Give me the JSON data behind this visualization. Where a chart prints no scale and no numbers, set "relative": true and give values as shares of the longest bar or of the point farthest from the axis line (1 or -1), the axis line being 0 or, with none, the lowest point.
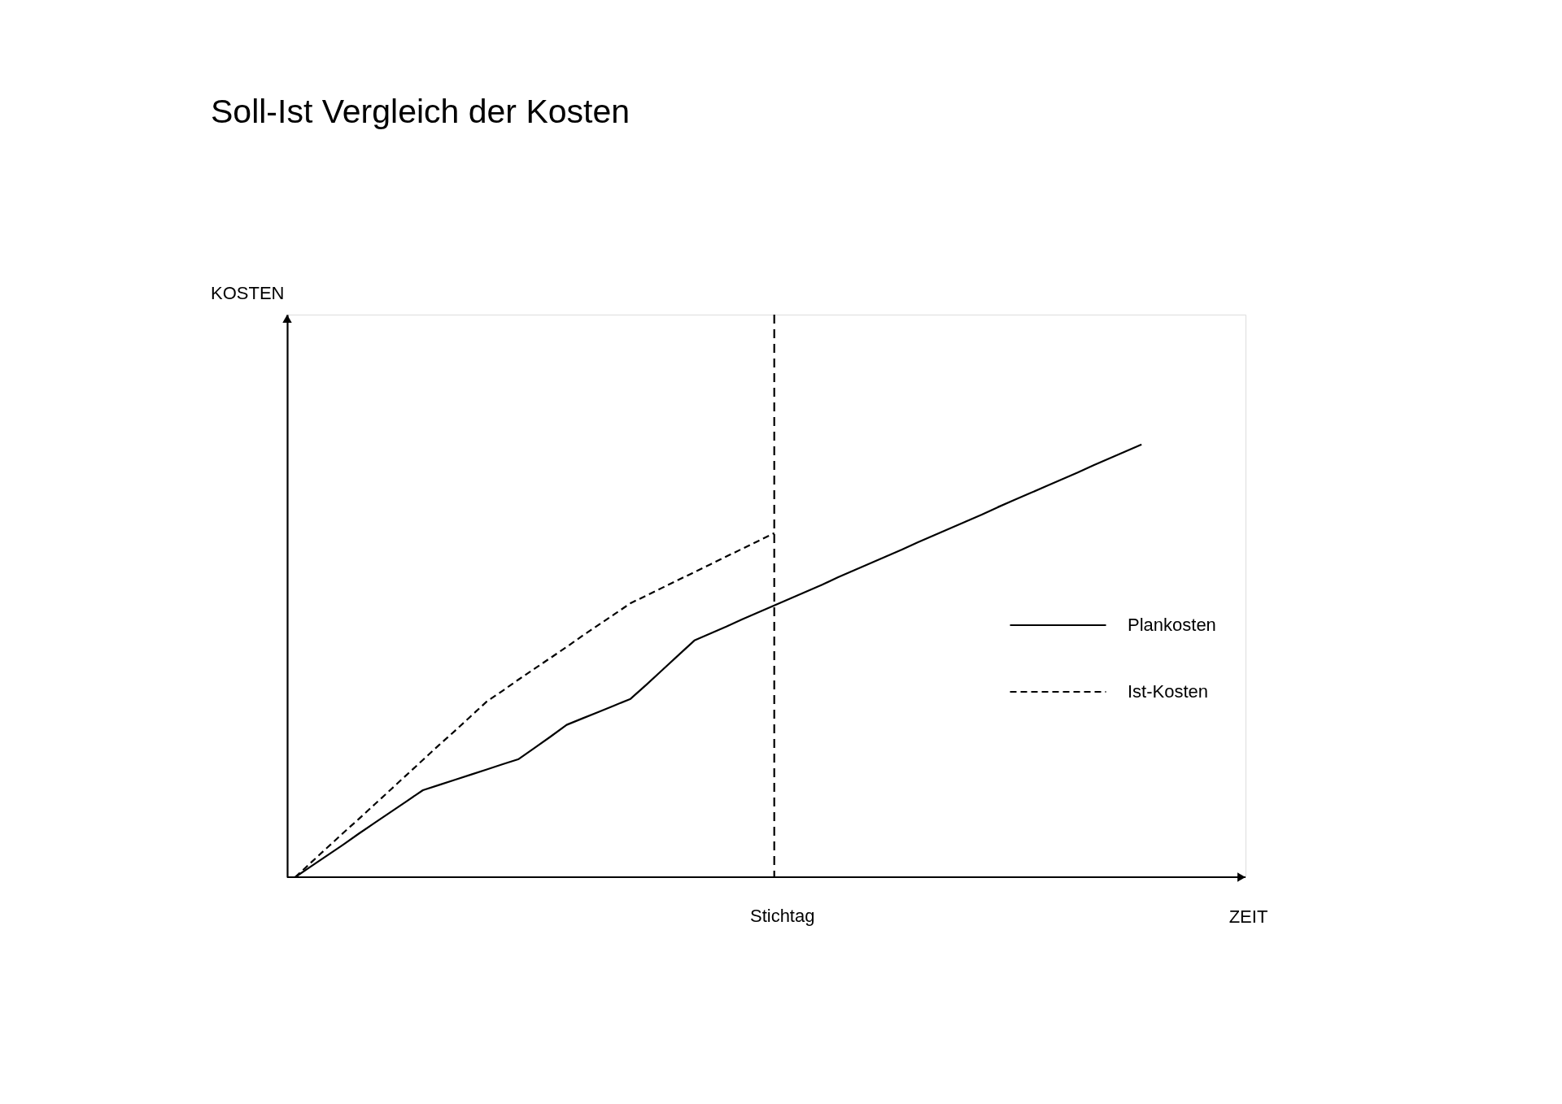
{
  "chart_data": {
    "type": "line",
    "title": "Soll-Ist Vergleich der Kosten",
    "xlabel": "ZEIT",
    "relative": true,
    "legend": "right",
    "annotations": [
      "Stichtag",
      "KOSTEN"
    ],
    "categories": [
      null,
      null,
      null,
      null,
      null,
      null,
      null,
      null,
      null,
      null,
      null,
      null,
      null,
      null,
      null,
      null,
      null,
      null,
      null,
      null,
      null,
      null,
      null,
      null,
      null,
      null,
      null,
      null,
      null,
      null,
      null,
      null,
      null,
      null,
      null,
      null,
      null,
      null,
      null,
      null,
      null,
      null,
      null,
      null,
      null,
      null,
      null,
      null,
      null,
      null,
      null,
      null,
      null,
      null
    ],
    "series": [
      {
        "name": "Plankosten",
        "color": "#000000",
        "line_style": "solid",
        "values": [
          0,
          0.025,
          0.05,
          0.075,
          0.101,
          0.126,
          0.151,
          0.176,
          0.201,
          0.213,
          0.225,
          0.237,
          0.249,
          0.261,
          0.273,
          0.299,
          0.325,
          0.352,
          0.367,
          0.382,
          0.397,
          0.412,
          0.445,
          0.479,
          0.513,
          0.547,
          0.563,
          0.579,
          0.596,
          0.612,
          0.628,
          0.644,
          0.66,
          0.676,
          0.693,
          0.709,
          0.725,
          0.741,
          0.757,
          0.774,
          0.79,
          0.806,
          0.822,
          0.838,
          0.855,
          0.871,
          0.887,
          0.903,
          0.919,
          0.935,
          0.952,
          0.968,
          0.984,
          1
        ]
      },
      {
        "name": "Ist-Kosten",
        "color": "#000000",
        "line_style": "dashed",
        "values": [
          0,
          0.034,
          0.068,
          0.102,
          0.135,
          0.169,
          0.203,
          0.237,
          0.271,
          0.305,
          0.338,
          0.372,
          0.406,
          0.431,
          0.457,
          0.482,
          0.507,
          0.532,
          0.558,
          0.583,
          0.608,
          0.633,
          0.651,
          0.669,
          0.687,
          0.705,
          0.723,
          0.741,
          0.759,
          0.777,
          0.795,
          null,
          null,
          null,
          null,
          null,
          null,
          null,
          null,
          null,
          null,
          null,
          null,
          null,
          null,
          null,
          null,
          null,
          null,
          null,
          null,
          null,
          null,
          null
        ]
      }
    ]
  }
}
